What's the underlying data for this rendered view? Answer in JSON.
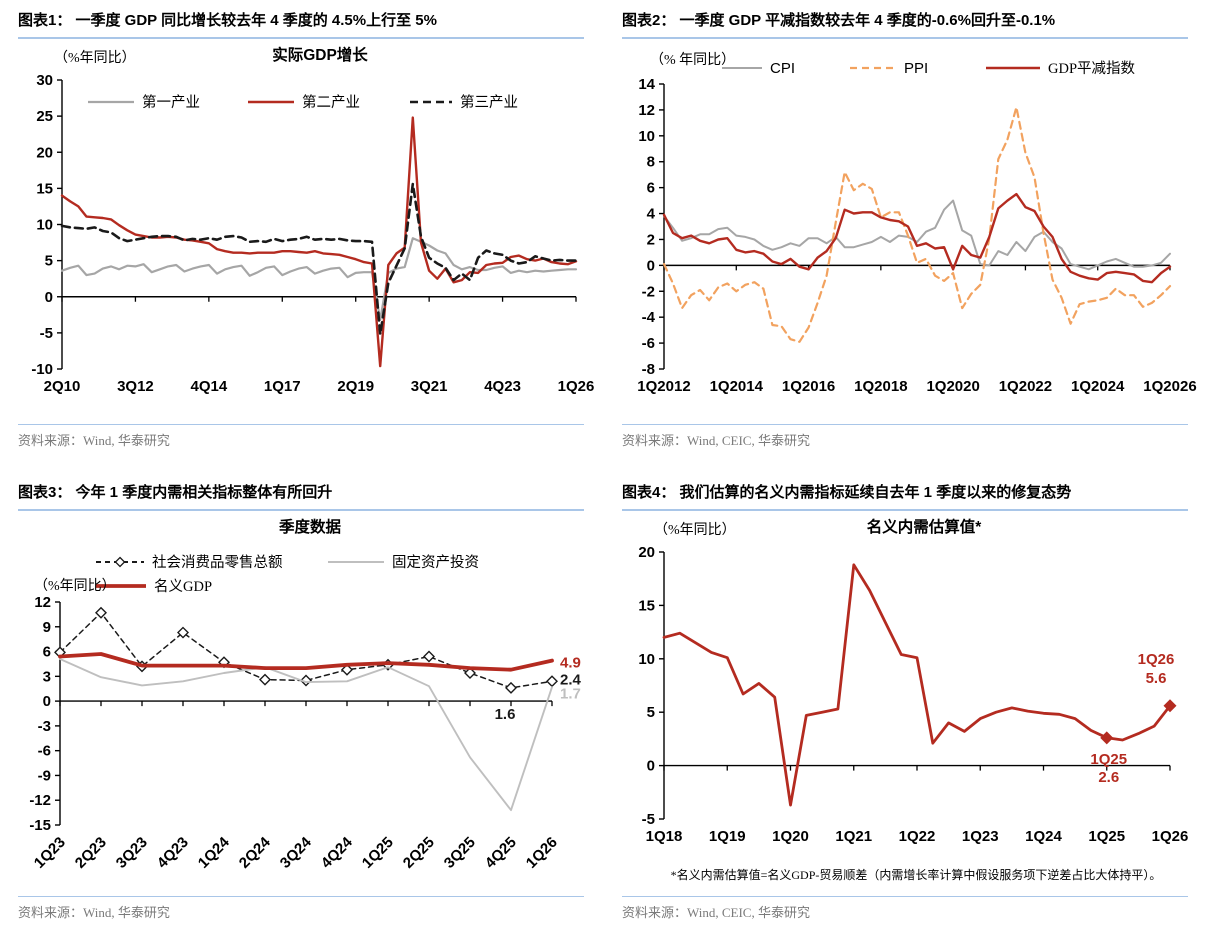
{
  "colors": {
    "red": "#b42b20",
    "gray": "#a6a6a6",
    "light_gray": "#bfbfbf",
    "black": "#1a1a1a",
    "orange": "#f2a25f",
    "rule_blue": "#a9c6e8",
    "source_text": "#7a7a7a"
  },
  "chart_data": [
    {
      "type": "line",
      "header": "图表1：  一季度 GDP 同比增长较去年 4 季度的 4.5%上行至 5%",
      "subtitle": "实际GDP增长",
      "unit": "（%年同比）",
      "source": "资料来源：Wind, 华泰研究",
      "n_points": 64,
      "x_start": "2Q10",
      "x_tick_labels": [
        "2Q10",
        "3Q12",
        "4Q14",
        "1Q17",
        "2Q19",
        "3Q21",
        "4Q23",
        "1Q26"
      ],
      "x_tick_idx": [
        0,
        9,
        18,
        27,
        36,
        45,
        54,
        63
      ],
      "ylim": [
        -10,
        30
      ],
      "yticks": [
        30,
        25,
        20,
        15,
        10,
        5,
        0,
        -5,
        -10
      ],
      "grid": false,
      "legend_position": "top-inside",
      "series": [
        {
          "name": "第一产业",
          "color": "#a6a6a6",
          "style": "solid",
          "width": 2.2,
          "values": [
            3.6,
            4.0,
            4.3,
            3.0,
            3.2,
            3.9,
            4.2,
            3.8,
            4.3,
            4.2,
            4.5,
            3.4,
            3.8,
            4.2,
            4.4,
            3.5,
            3.9,
            4.2,
            4.4,
            3.2,
            3.8,
            4.1,
            4.3,
            2.9,
            3.4,
            4.0,
            4.2,
            3.0,
            3.5,
            3.9,
            4.1,
            3.2,
            3.6,
            3.9,
            4.0,
            2.7,
            3.3,
            3.4,
            3.4,
            -3.2,
            3.3,
            3.9,
            4.1,
            8.1,
            7.6,
            7.1,
            6.4,
            6.0,
            4.4,
            3.8,
            4.1,
            3.7,
            3.7,
            4.0,
            4.2,
            3.3,
            3.6,
            3.4,
            3.6,
            3.5,
            3.6,
            3.7,
            3.8,
            3.8
          ]
        },
        {
          "name": "第二产业",
          "color": "#b42b20",
          "style": "solid",
          "width": 2.4,
          "values": [
            14.0,
            13.2,
            12.5,
            11.1,
            11.0,
            10.9,
            10.7,
            9.9,
            9.2,
            8.6,
            8.4,
            8.2,
            8.2,
            8.3,
            8.2,
            7.9,
            7.8,
            7.6,
            7.4,
            6.6,
            6.3,
            6.1,
            6.1,
            6.0,
            6.1,
            6.1,
            6.1,
            6.3,
            6.3,
            6.2,
            6.1,
            6.3,
            6.0,
            5.9,
            5.8,
            5.5,
            5.2,
            4.8,
            4.6,
            -9.6,
            4.4,
            6.0,
            6.8,
            24.8,
            7.5,
            3.6,
            2.5,
            3.9,
            2.0,
            2.3,
            3.4,
            3.3,
            4.4,
            4.6,
            4.7,
            5.5,
            5.7,
            5.2,
            5.0,
            5.3,
            4.8,
            4.6,
            4.5,
            4.9
          ]
        },
        {
          "name": "第三产业",
          "color": "#1a1a1a",
          "style": "dashed",
          "width": 2.6,
          "values": [
            9.8,
            9.6,
            9.5,
            9.4,
            9.6,
            9.1,
            8.9,
            8.1,
            7.7,
            7.9,
            8.1,
            8.3,
            8.4,
            8.4,
            8.3,
            7.8,
            8.0,
            7.9,
            8.1,
            7.9,
            8.3,
            8.4,
            8.2,
            7.6,
            7.7,
            7.6,
            8.0,
            7.7,
            7.9,
            8.0,
            8.3,
            7.9,
            8.0,
            7.9,
            8.0,
            7.8,
            7.7,
            7.7,
            7.6,
            -5.2,
            1.9,
            4.3,
            6.7,
            15.6,
            8.3,
            5.4,
            4.6,
            4.0,
            2.3,
            3.2,
            2.3,
            5.4,
            6.4,
            6.0,
            5.8,
            5.0,
            4.6,
            4.8,
            5.6,
            5.3,
            5.0,
            5.1,
            5.0,
            5.0
          ]
        }
      ],
      "annotations": []
    },
    {
      "type": "line",
      "header": "图表2：  一季度 GDP 平减指数较去年 4 季度的-0.6%回升至-0.1%",
      "subtitle": "",
      "unit": "（% 年同比）",
      "source": "资料来源：Wind, CEIC, 华泰研究",
      "n_points": 57,
      "x_start": "1Q2012",
      "x_tick_labels": [
        "1Q2012",
        "1Q2014",
        "1Q2016",
        "1Q2018",
        "1Q2020",
        "1Q2022",
        "1Q2024",
        "1Q2026"
      ],
      "x_tick_idx": [
        0,
        8,
        16,
        24,
        32,
        40,
        48,
        56
      ],
      "ylim": [
        -8,
        14
      ],
      "yticks": [
        14,
        12,
        10,
        8,
        6,
        4,
        2,
        0,
        -2,
        -4,
        -6,
        -8
      ],
      "grid": false,
      "legend_position": "top",
      "series": [
        {
          "name": "CPI",
          "color": "#a6a6a6",
          "style": "solid",
          "width": 2.0,
          "values": [
            3.8,
            2.9,
            1.9,
            2.1,
            2.4,
            2.4,
            2.8,
            2.9,
            2.3,
            2.2,
            2.0,
            1.5,
            1.2,
            1.4,
            1.7,
            1.5,
            2.1,
            2.1,
            1.7,
            2.2,
            1.4,
            1.4,
            1.6,
            1.8,
            2.2,
            1.8,
            2.3,
            2.2,
            1.8,
            2.6,
            2.9,
            4.3,
            5.0,
            2.7,
            2.3,
            0.1,
            0.0,
            1.1,
            0.8,
            1.8,
            1.1,
            2.2,
            2.6,
            1.8,
            1.3,
            0.1,
            -0.1,
            -0.3,
            0.0,
            0.3,
            0.5,
            0.2,
            -0.1,
            -0.1,
            0.0,
            0.2,
            0.9
          ]
        },
        {
          "name": "PPI",
          "color": "#f2a25f",
          "style": "dashed",
          "width": 2.2,
          "values": [
            0.1,
            -1.4,
            -3.3,
            -2.3,
            -1.9,
            -2.7,
            -1.7,
            -1.4,
            -2.0,
            -1.5,
            -1.3,
            -1.8,
            -4.6,
            -4.7,
            -5.7,
            -5.9,
            -4.8,
            -2.9,
            -0.8,
            3.3,
            7.2,
            5.8,
            6.3,
            5.9,
            3.7,
            4.1,
            4.1,
            2.3,
            0.2,
            0.5,
            -0.8,
            -1.2,
            -0.6,
            -3.3,
            -2.2,
            -1.5,
            2.1,
            8.2,
            9.7,
            12.2,
            8.7,
            6.8,
            2.5,
            -1.1,
            -2.5,
            -4.5,
            -3.0,
            -2.8,
            -2.7,
            -2.5,
            -1.8,
            -2.3,
            -2.3,
            -3.2,
            -2.9,
            -2.3,
            -1.6
          ]
        },
        {
          "name": "GDP平减指数",
          "color": "#b42b20",
          "style": "solid",
          "width": 2.4,
          "values": [
            3.9,
            2.5,
            2.1,
            2.3,
            1.9,
            1.7,
            2.0,
            2.1,
            1.2,
            1.0,
            1.1,
            0.9,
            0.3,
            0.1,
            0.5,
            -0.1,
            -0.3,
            0.6,
            1.1,
            2.1,
            4.3,
            4.0,
            4.1,
            4.1,
            3.7,
            3.5,
            3.4,
            3.0,
            1.5,
            1.7,
            1.3,
            1.4,
            -0.3,
            1.5,
            0.8,
            0.6,
            2.2,
            4.4,
            5.0,
            5.5,
            4.5,
            4.2,
            3.0,
            2.2,
            0.5,
            -0.5,
            -0.8,
            -1.0,
            -1.1,
            -0.6,
            -0.5,
            -0.6,
            -0.7,
            -1.2,
            -1.3,
            -0.6,
            -0.1
          ]
        }
      ],
      "annotations": []
    },
    {
      "type": "line",
      "header": "图表3：  今年 1 季度内需相关指标整体有所回升",
      "subtitle": "季度数据",
      "unit": "（%年同比）",
      "source": "资料来源：Wind, 华泰研究",
      "n_points": 13,
      "categories": [
        "1Q23",
        "2Q23",
        "3Q23",
        "4Q23",
        "1Q24",
        "2Q24",
        "3Q24",
        "4Q24",
        "1Q25",
        "2Q25",
        "3Q25",
        "4Q25",
        "1Q26"
      ],
      "x_tick_idx": [
        0,
        1,
        2,
        3,
        4,
        5,
        6,
        7,
        8,
        9,
        10,
        11,
        12
      ],
      "ylim": [
        -15,
        12
      ],
      "yticks": [
        12,
        9,
        6,
        3,
        0,
        -3,
        -6,
        -9,
        -12,
        -15
      ],
      "grid": false,
      "legend_position": "top",
      "series": [
        {
          "name": "社会消费品零售总额",
          "color": "#1a1a1a",
          "style": "dashed",
          "width": 1.5,
          "marker": "diamond-open",
          "values": [
            5.9,
            10.7,
            4.2,
            8.3,
            4.7,
            2.6,
            2.5,
            3.8,
            4.4,
            5.4,
            3.4,
            1.6,
            2.4
          ]
        },
        {
          "name": "固定资产投资",
          "color": "#bfbfbf",
          "style": "solid",
          "width": 1.9,
          "values": [
            5.1,
            2.9,
            1.9,
            2.4,
            3.4,
            4.1,
            2.3,
            2.4,
            4.1,
            1.8,
            -6.8,
            -13.2,
            1.7
          ]
        },
        {
          "name": "名义GDP",
          "color": "#b42b20",
          "style": "solid",
          "width": 3.8,
          "values": [
            5.4,
            5.7,
            4.3,
            4.3,
            4.3,
            4.0,
            4.0,
            4.4,
            4.6,
            4.4,
            4.0,
            3.8,
            4.9
          ]
        }
      ],
      "annotations": [
        {
          "text": "4.9",
          "color": "#b42b20",
          "placement": "right",
          "at_value": 4.7
        },
        {
          "text": "2.4",
          "color": "#1a1a1a",
          "placement": "right",
          "at_value": 2.6
        },
        {
          "text": "1.7",
          "color": "#bfbfbf",
          "placement": "right",
          "at_value": 0.9
        },
        {
          "text": "1.6",
          "color": "#1a1a1a",
          "placement": "below-axis",
          "at_index": 11
        }
      ]
    },
    {
      "type": "line",
      "header": "图表4：  我们估算的名义内需指标延续自去年 1 季度以来的修复态势",
      "subtitle": "名义内需估算值*",
      "unit": "（%年同比）",
      "source": "资料来源：Wind, CEIC, 华泰研究",
      "footnote": "*名义内需估算值=名义GDP-贸易顺差（内需增长率计算中假设服务项下逆差占比大体持平）。",
      "n_points": 33,
      "x_start": "1Q18",
      "x_tick_labels": [
        "1Q18",
        "1Q19",
        "1Q20",
        "1Q21",
        "1Q22",
        "1Q23",
        "1Q24",
        "1Q25",
        "1Q26"
      ],
      "x_tick_idx": [
        0,
        4,
        8,
        12,
        16,
        20,
        24,
        28,
        32
      ],
      "ylim": [
        -5,
        20
      ],
      "yticks": [
        20,
        15,
        10,
        5,
        0,
        -5
      ],
      "grid": false,
      "legend_position": "none",
      "series": [
        {
          "name": "名义内需估算值",
          "color": "#b42b20",
          "style": "solid",
          "width": 2.8,
          "marker": "diamond-filled",
          "marker_idx": [
            28,
            32
          ],
          "values": [
            12.0,
            12.4,
            11.5,
            10.6,
            10.1,
            6.7,
            7.7,
            6.4,
            -3.7,
            4.7,
            5.0,
            5.3,
            18.8,
            16.4,
            13.4,
            10.4,
            10.1,
            2.1,
            4.0,
            3.2,
            4.4,
            5.0,
            5.4,
            5.1,
            4.9,
            4.8,
            4.4,
            3.3,
            2.6,
            2.4,
            3.0,
            3.7,
            5.6
          ]
        }
      ],
      "annotations": [
        {
          "lines": [
            "1Q25",
            "2.6"
          ],
          "color": "#b42b20",
          "placement": "below-point",
          "at_index": 28
        },
        {
          "lines": [
            "1Q26",
            "5.6"
          ],
          "color": "#b42b20",
          "placement": "above-point",
          "at_index": 32
        }
      ]
    }
  ]
}
